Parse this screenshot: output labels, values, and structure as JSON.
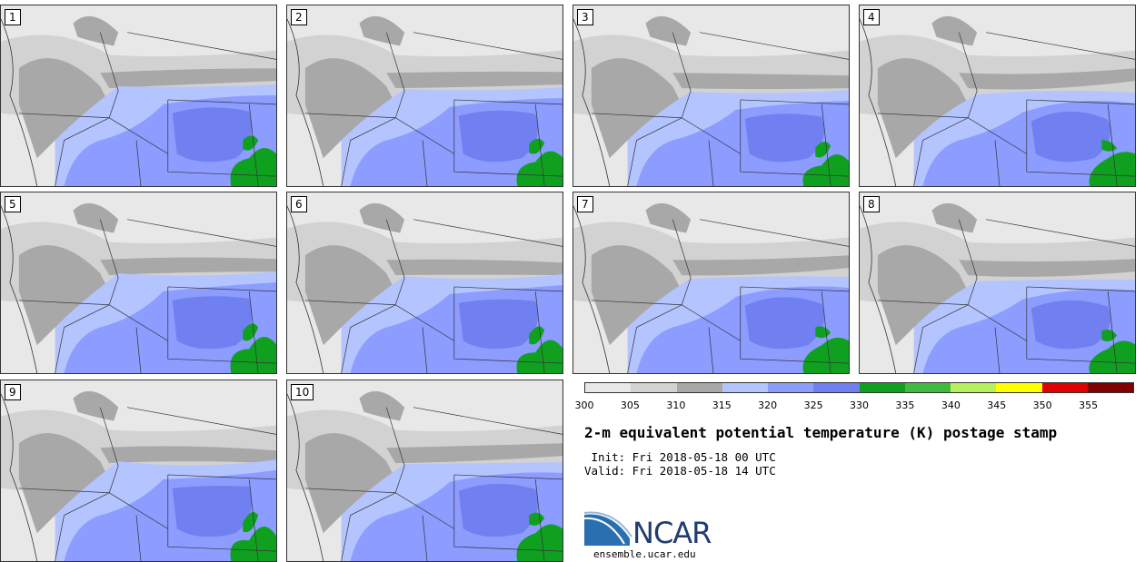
{
  "panels": [
    {
      "label": "1"
    },
    {
      "label": "2"
    },
    {
      "label": "3"
    },
    {
      "label": "4"
    },
    {
      "label": "5"
    },
    {
      "label": "6"
    },
    {
      "label": "7"
    },
    {
      "label": "8"
    },
    {
      "label": "9"
    },
    {
      "label": "10"
    }
  ],
  "colorbar": {
    "colors": [
      "#e8e8e8",
      "#d2d2d2",
      "#a8a8a8",
      "#b4c4ff",
      "#8c9cff",
      "#7080f0",
      "#10a020",
      "#40bb40",
      "#b8f060",
      "#ffff00",
      "#e00000",
      "#800000"
    ],
    "ticks": [
      "300",
      "305",
      "310",
      "315",
      "320",
      "325",
      "330",
      "335",
      "340",
      "345",
      "350",
      "355"
    ]
  },
  "title": "2-m equivalent potential temperature (K) postage stamp",
  "init": " Init: Fri 2018-05-18 00 UTC",
  "valid": "Valid: Fri 2018-05-18 14 UTC",
  "logo": {
    "text": "NCAR",
    "site": "ensemble.ucar.edu",
    "color": "#1f3d6e"
  }
}
